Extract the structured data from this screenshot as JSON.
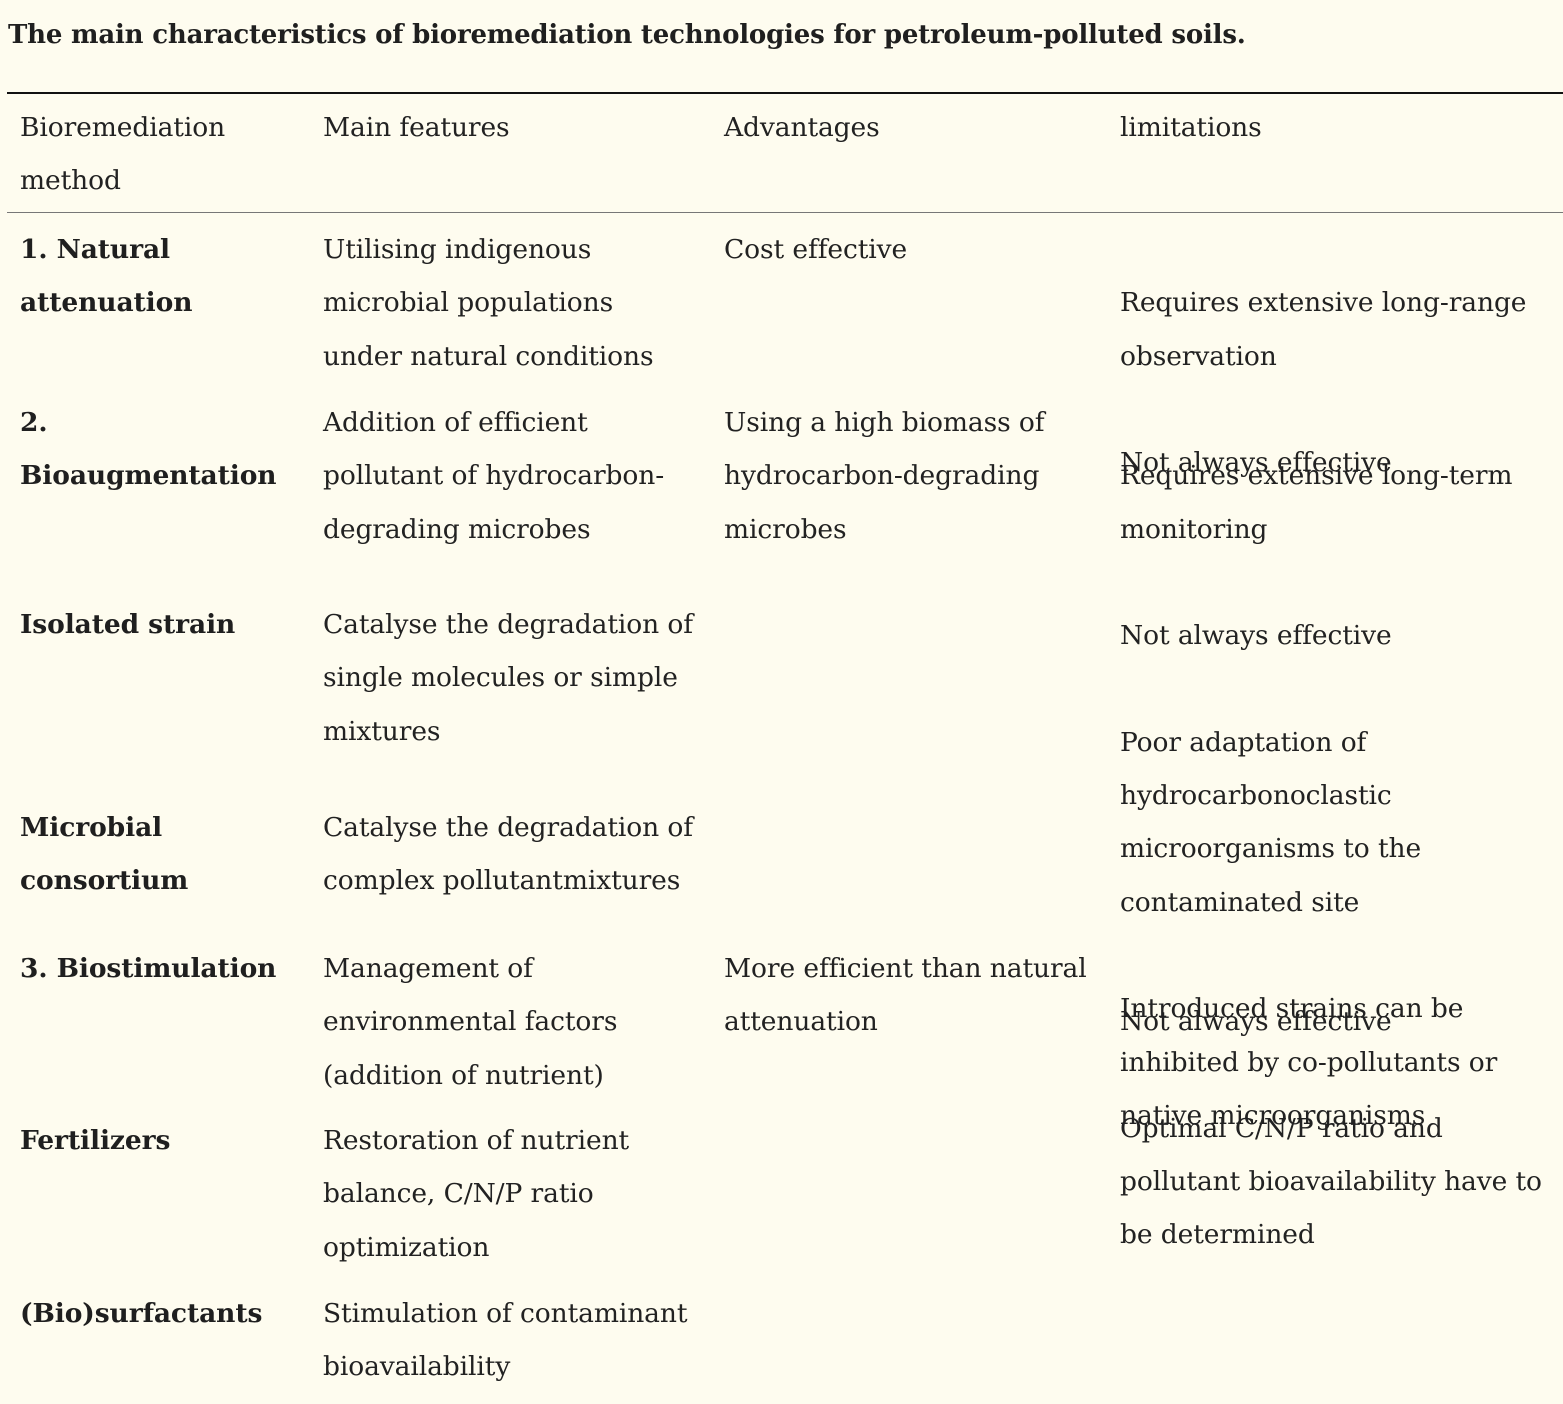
{
  "caption": "The main characteristics of bioremediation technologies for petroleum-polluted soils.",
  "headers": {
    "method": "Bioremediation\nmethod",
    "features": "Main features",
    "advantages": "Advantages",
    "limitations": "limitations"
  },
  "rows": [
    {
      "method": "1. Natural\nattenuation",
      "features": "Utilising indigenous\nmicrobial populations\nunder natural conditions",
      "advantages": "Cost effective",
      "limitations": [
        "Requires extensive long-range\nobservation",
        "Not always effective"
      ]
    },
    {
      "method": "2.\nBioaugmentation",
      "features": "Addition of efficient\npollutant of hydrocarbon-\ndegrading microbes",
      "advantages": "Using a high biomass of\nhydrocarbon-degrading\nmicrobes",
      "limitations": [
        "Requires extensive long-term\nmonitoring",
        "Not always effective",
        "Poor adaptation of\nhydrocarbonoclastic\nmicroorganisms to the\ncontaminated site",
        "Introduced strains can be\ninhibited by co-pollutants or\nnative microorganisms"
      ]
    },
    {
      "method": "Isolated strain",
      "features": "Catalyse the degradation of\nsingle molecules or simple\nmixtures"
    },
    {
      "method": "Microbial\nconsortium",
      "features": "Catalyse the degradation of\ncomplex pollutantmixtures"
    },
    {
      "method": "3. Biostimulation",
      "features": "Management of\nenvironmental factors\n(addition of nutrient)",
      "advantages": "More efficient than natural\nattenuation",
      "limitations": [
        "Not always effective",
        "Optimal C/N/P ratio and\npollutant bioavailability have to\nbe determined"
      ]
    },
    {
      "method": "Fertilizers",
      "features": "Restoration of nutrient\nbalance, C/N/P ratio\noptimization"
    },
    {
      "method": "(Bio)surfactants",
      "features": "Stimulation of contaminant\nbioavailability"
    }
  ]
}
